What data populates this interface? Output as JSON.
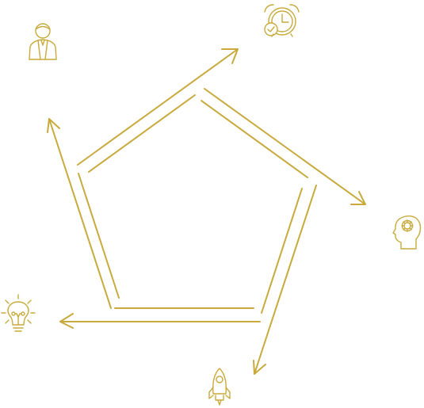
{
  "diagram": {
    "type": "cycle",
    "stroke_color": "#c8aa3c",
    "steps": [
      {
        "icon": "businessman-icon"
      },
      {
        "icon": "alarm-clock-check-icon"
      },
      {
        "icon": "head-gear-icon"
      },
      {
        "icon": "rocket-icon"
      },
      {
        "icon": "lightbulb-icon"
      }
    ]
  }
}
